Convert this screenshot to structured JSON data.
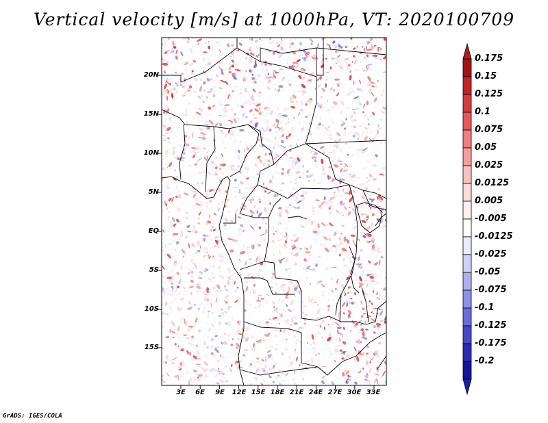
{
  "title": "Vertical velocity [m/s] at 1000hPa, VT: 2020100709",
  "credit": "GrADS: IGES/COLA",
  "map": {
    "lat_labels": [
      "20N",
      "15N",
      "10N",
      "5N",
      "EQ",
      "5S",
      "10S",
      "15S"
    ],
    "lon_labels": [
      "3E",
      "6E",
      "9E",
      "12E",
      "15E",
      "18E",
      "21E",
      "24E",
      "27E",
      "30E",
      "33E"
    ]
  },
  "colorbar": {
    "labels": [
      "0.175",
      "0.15",
      "0.125",
      "0.1",
      "0.075",
      "0.05",
      "0.025",
      "0.0125",
      "0.005",
      "-0.005",
      "-0.0125",
      "-0.025",
      "-0.05",
      "-0.075",
      "-0.1",
      "-0.125",
      "-0.175",
      "-0.2"
    ],
    "colors": [
      "#a01414",
      "#c22424",
      "#d83c3c",
      "#e85858",
      "#ef7e7e",
      "#f4a0a0",
      "#f8c2c2",
      "#fadcdc",
      "#fdf0f0",
      "#ffffff",
      "#ececfc",
      "#d0d0f8",
      "#b0b0f0",
      "#9090e6",
      "#6c6cd8",
      "#4848c6",
      "#2a2ab4",
      "#14149a"
    ],
    "arrow_top_color": "#b01e1e",
    "arrow_bottom_color": "#1e1ea0"
  }
}
